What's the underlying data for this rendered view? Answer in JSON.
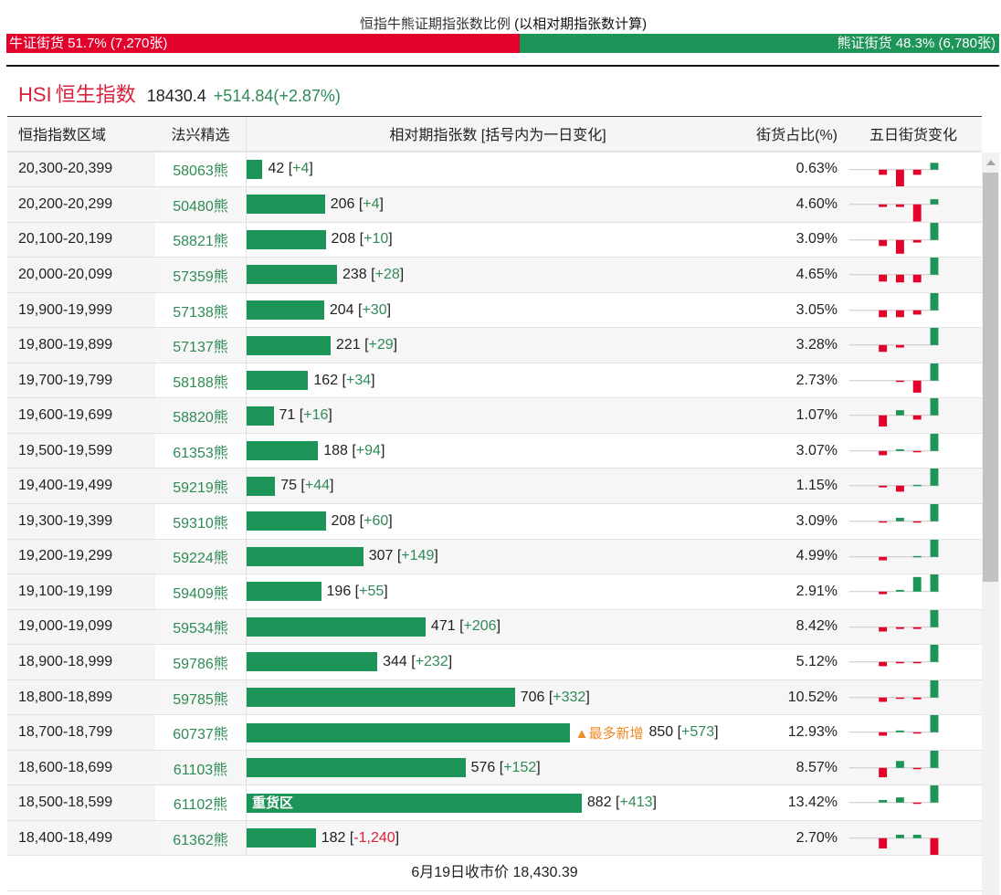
{
  "header": {
    "title_main": "恒指牛熊证期指张数比例",
    "title_note": "(以相对期指张数计算)",
    "bull_label": "牛证街货 51.7% (7,270张)",
    "bear_label": "熊证街货 48.3% (6,780张)",
    "bull_pct": 51.7,
    "index_code": "HSI",
    "index_name": "恒生指数",
    "index_price": "18430.4",
    "index_change": "+514.84(+2.87%)"
  },
  "columns": [
    "恒指指数区域",
    "法兴精选",
    "相对期指张数 [括号内为一日变化]",
    "街货占比(%)",
    "五日街货变化"
  ],
  "colors": {
    "bull": "#e3002b",
    "bear": "#1d9458"
  },
  "rows": [
    {
      "range": "20,300-20,399",
      "code": "58063熊",
      "count": 42,
      "count_label": "42",
      "change": "+4",
      "pct": "0.63%",
      "spark": [
        0,
        -0.3,
        -1,
        -0.3,
        0.4
      ]
    },
    {
      "range": "20,200-20,299",
      "code": "50480熊",
      "count": 206,
      "count_label": "206",
      "change": "+4",
      "pct": "4.60%",
      "spark": [
        0,
        -0.15,
        -0.15,
        -1,
        0.3
      ]
    },
    {
      "range": "20,100-20,199",
      "code": "58821熊",
      "count": 208,
      "count_label": "208",
      "change": "+10",
      "pct": "3.09%",
      "spark": [
        0,
        -0.35,
        -0.8,
        -0.15,
        1
      ]
    },
    {
      "range": "20,000-20,099",
      "code": "57359熊",
      "count": 238,
      "count_label": "238",
      "change": "+28",
      "pct": "4.65%",
      "spark": [
        0,
        -0.4,
        -0.45,
        -0.45,
        1
      ]
    },
    {
      "range": "19,900-19,999",
      "code": "57138熊",
      "count": 204,
      "count_label": "204",
      "change": "+30",
      "pct": "3.05%",
      "spark": [
        0,
        -0.4,
        -0.4,
        -0.25,
        1
      ]
    },
    {
      "range": "19,800-19,899",
      "code": "57137熊",
      "count": 221,
      "count_label": "221",
      "change": "+29",
      "pct": "3.28%",
      "spark": [
        0,
        -0.4,
        -0.15,
        0,
        1
      ]
    },
    {
      "range": "19,700-19,799",
      "code": "58188熊",
      "count": 162,
      "count_label": "162",
      "change": "+34",
      "pct": "2.73%",
      "spark": [
        0,
        0,
        -0.05,
        -0.7,
        1
      ]
    },
    {
      "range": "19,600-19,699",
      "code": "58820熊",
      "count": 71,
      "count_label": "71",
      "change": "+16",
      "pct": "1.07%",
      "spark": [
        0,
        -0.65,
        0.3,
        -0.25,
        1
      ]
    },
    {
      "range": "19,500-19,599",
      "code": "61353熊",
      "count": 188,
      "count_label": "188",
      "change": "+94",
      "pct": "3.07%",
      "spark": [
        0,
        -0.25,
        0.1,
        -0.05,
        1
      ]
    },
    {
      "range": "19,400-19,499",
      "code": "59219熊",
      "count": 75,
      "count_label": "75",
      "change": "+44",
      "pct": "1.15%",
      "spark": [
        0,
        -0.1,
        -0.35,
        0.05,
        1
      ]
    },
    {
      "range": "19,300-19,399",
      "code": "59310熊",
      "count": 208,
      "count_label": "208",
      "change": "+60",
      "pct": "3.09%",
      "spark": [
        0,
        -0.05,
        0.2,
        -0.05,
        1
      ]
    },
    {
      "range": "19,200-19,299",
      "code": "59224熊",
      "count": 307,
      "count_label": "307",
      "change": "+149",
      "pct": "4.99%",
      "spark": [
        0,
        -0.2,
        0,
        0.05,
        1
      ]
    },
    {
      "range": "19,100-19,199",
      "code": "59409熊",
      "count": 196,
      "count_label": "196",
      "change": "+55",
      "pct": "2.91%",
      "spark": [
        0,
        -0.15,
        0.1,
        0.85,
        1
      ]
    },
    {
      "range": "19,000-19,099",
      "code": "59534熊",
      "count": 471,
      "count_label": "471",
      "change": "+206",
      "pct": "8.42%",
      "spark": [
        0,
        -0.25,
        -0.1,
        -0.1,
        1
      ]
    },
    {
      "range": "18,900-18,999",
      "code": "59786熊",
      "count": 344,
      "count_label": "344",
      "change": "+232",
      "pct": "5.12%",
      "spark": [
        0,
        -0.25,
        -0.05,
        -0.05,
        1
      ]
    },
    {
      "range": "18,800-18,899",
      "code": "59785熊",
      "count": 706,
      "count_label": "706",
      "change": "+332",
      "pct": "10.52%",
      "spark": [
        0,
        -0.25,
        -0.05,
        -0.1,
        1
      ]
    },
    {
      "range": "18,700-18,799",
      "code": "60737熊",
      "count": 850,
      "count_label": "850",
      "change": "+573",
      "pct": "12.93%",
      "tag": "▲最多新增",
      "spark": [
        0,
        -0.2,
        0.1,
        -0.05,
        1
      ]
    },
    {
      "range": "18,600-18,699",
      "code": "61103熊",
      "count": 576,
      "count_label": "576",
      "change": "+152",
      "pct": "8.57%",
      "spark": [
        0,
        -0.55,
        0.4,
        -0.05,
        1
      ]
    },
    {
      "range": "18,500-18,599",
      "code": "61102熊",
      "count": 882,
      "count_label": "882",
      "change": "+413",
      "pct": "13.42%",
      "bar_label": "重货区",
      "spark": [
        0,
        0.15,
        0.3,
        -0.05,
        1
      ]
    },
    {
      "range": "18,400-18,499",
      "code": "61362熊",
      "count": 182,
      "count_label": "182",
      "change": "-1,240",
      "pct": "2.70%",
      "spark": [
        0,
        -0.6,
        0.2,
        0.2,
        -1
      ]
    }
  ],
  "footer": "6月19日收市价 18,430.39"
}
